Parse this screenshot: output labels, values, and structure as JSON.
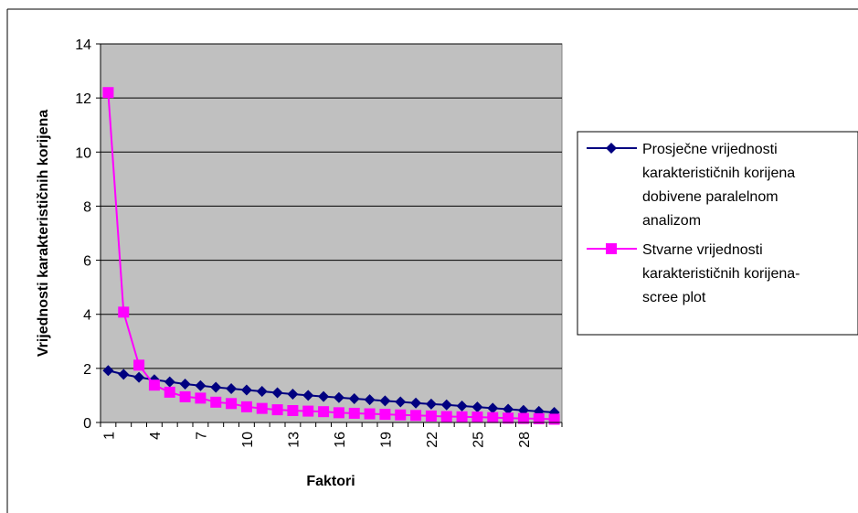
{
  "colors": {
    "plot_bg": "#c0c0c0",
    "grid": "#000000",
    "series1": "#000080",
    "series2": "#ff00ff"
  },
  "chart_data": {
    "type": "line",
    "xlabel": "Faktori",
    "ylabel": "Vrijednosti karakterističnih korijena",
    "ylim": [
      0,
      14
    ],
    "yticks": [
      "0",
      "2",
      "4",
      "6",
      "8",
      "10",
      "12",
      "14"
    ],
    "x": [
      1,
      2,
      3,
      4,
      5,
      6,
      7,
      8,
      9,
      10,
      11,
      12,
      13,
      14,
      15,
      16,
      17,
      18,
      19,
      20,
      21,
      22,
      23,
      24,
      25,
      26,
      27,
      28,
      29,
      30
    ],
    "xtick_labels": [
      "1",
      "4",
      "7",
      "10",
      "13",
      "16",
      "19",
      "22",
      "25",
      "28"
    ],
    "grid": "horizontal",
    "legend_position": "right",
    "series": [
      {
        "name": "Prosječne vrijednosti karakterističnih korijena dobivene paralelnom analizom",
        "name_lines": [
          "Prosječne vrijednosti",
          "karakterističnih korijena",
          "dobivene paralelnom",
          "analizom"
        ],
        "marker": "diamond",
        "color": "#000080",
        "values": [
          1.92,
          1.78,
          1.67,
          1.58,
          1.5,
          1.42,
          1.36,
          1.3,
          1.25,
          1.2,
          1.15,
          1.1,
          1.05,
          1.0,
          0.96,
          0.92,
          0.88,
          0.84,
          0.8,
          0.76,
          0.72,
          0.68,
          0.65,
          0.61,
          0.57,
          0.53,
          0.49,
          0.45,
          0.41,
          0.37
        ]
      },
      {
        "name": "Stvarne vrijednosti karakterističnih korijena-scree plot",
        "name_lines": [
          "Stvarne vrijednosti",
          "karakterističnih korijena-",
          "scree plot"
        ],
        "marker": "square",
        "color": "#ff00ff",
        "values": [
          12.2,
          4.08,
          2.12,
          1.38,
          1.12,
          0.95,
          0.9,
          0.75,
          0.7,
          0.58,
          0.52,
          0.47,
          0.44,
          0.42,
          0.4,
          0.36,
          0.34,
          0.32,
          0.3,
          0.28,
          0.26,
          0.24,
          0.22,
          0.21,
          0.2,
          0.18,
          0.16,
          0.15,
          0.14,
          0.12
        ]
      }
    ]
  }
}
